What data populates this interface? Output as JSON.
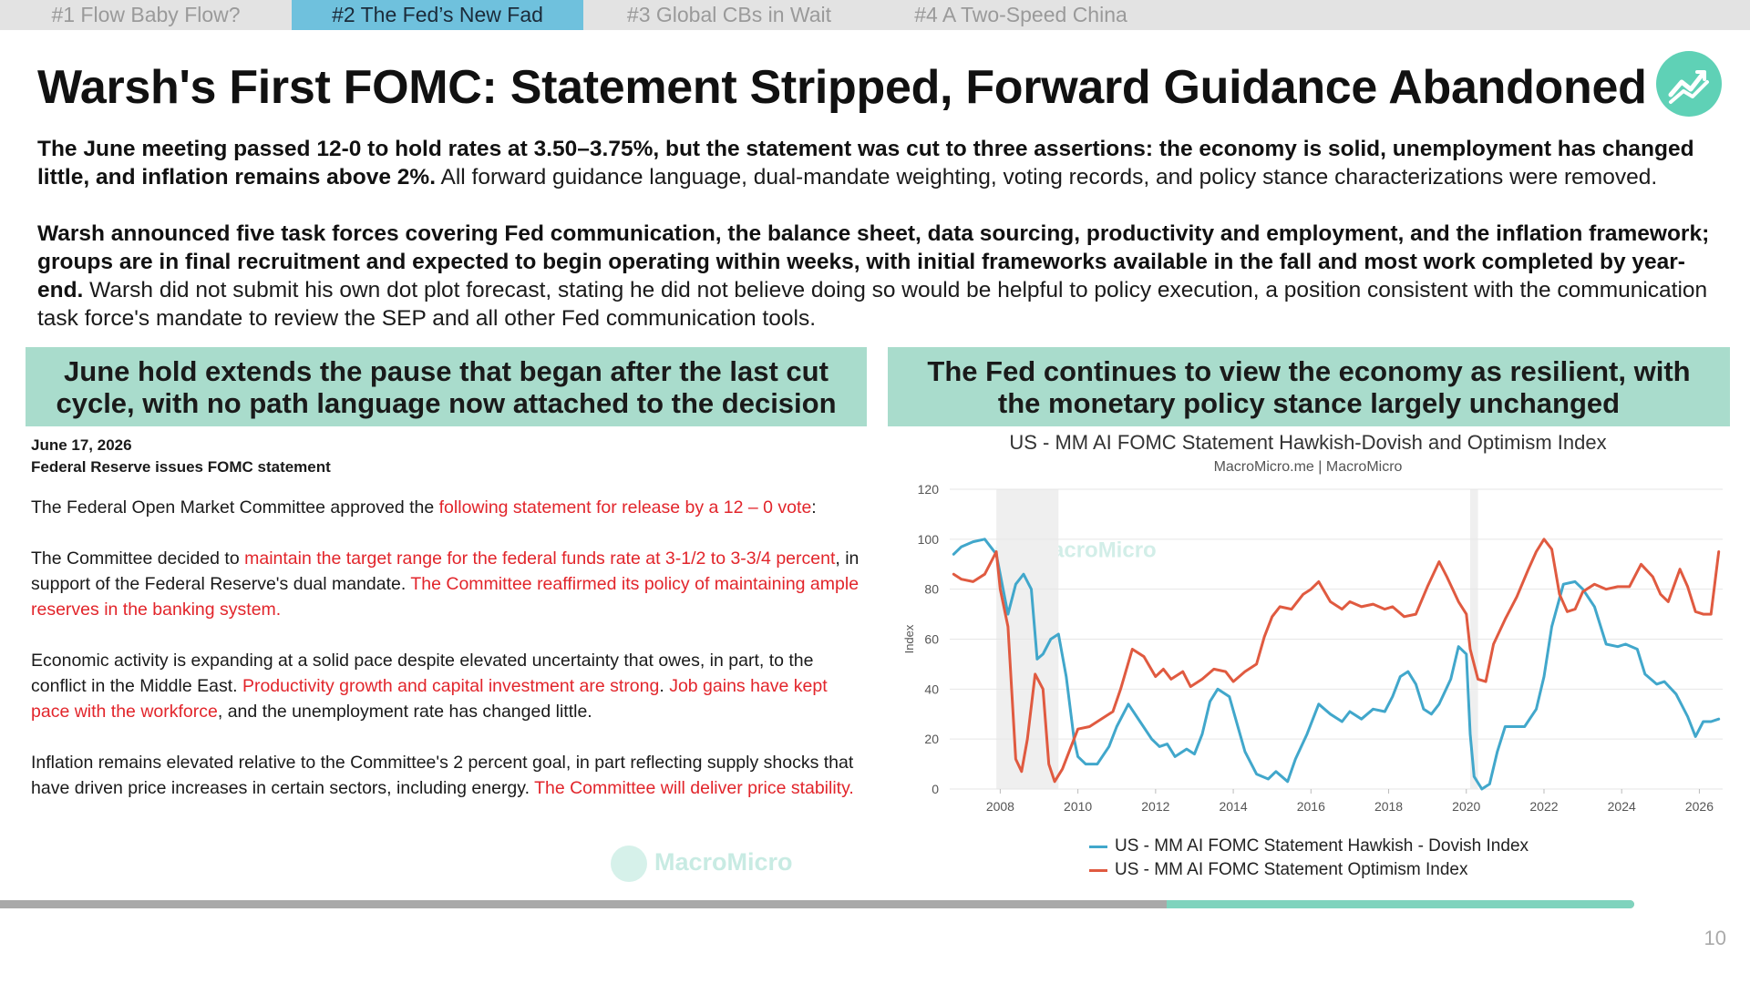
{
  "tabs": [
    {
      "label": "#1 Flow Baby Flow?",
      "active": false
    },
    {
      "label": "#2 The Fed’s New Fad",
      "active": true
    },
    {
      "label": "#3 Global CBs in Wait",
      "active": false
    },
    {
      "label": "#4 A Two-Speed China",
      "active": false
    }
  ],
  "title": "Warsh's First FOMC: Statement Stripped, Forward Guidance Abandoned",
  "logo_icon": "chart-line-up-icon",
  "intro": {
    "p1_bold": "The June meeting passed 12-0 to hold rates at 3.50–3.75%, but the statement was cut to three assertions: the economy is solid, unemployment has changed little, and inflation remains above 2%.",
    "p1_rest": " All forward guidance language, dual-mandate weighting, voting records, and policy stance characterizations were removed.",
    "p2_bold": "Warsh announced five task forces covering Fed communication, the balance sheet, data sourcing, productivity and employment, and the inflation framework; groups are in final recruitment and expected to begin operating within weeks, with initial frameworks available in the fall and most work completed by year-end.",
    "p2_rest": " Warsh did not submit his own dot plot forecast, stating he did not believe doing so would be helpful to policy execution, a position consistent with the communication task force's mandate to review the SEP and all other Fed communication tools."
  },
  "left_panel": {
    "heading": "June hold extends the pause that began after the last cut cycle, with no path language now attached to the decision",
    "date": "June 17, 2026",
    "subtitle": "Federal Reserve issues FOMC statement",
    "p1": {
      "a": "The Federal Open Market Committee approved the ",
      "r1": "following statement for release by a 12 – 0 vote",
      "b": ":"
    },
    "p2": {
      "a": "The Committee decided to ",
      "r1": "maintain the target range for the federal funds rate at 3-1/2 to 3-3/4 percent",
      "b": ", in support of the Federal Reserve's dual mandate. ",
      "r2": "The Committee reaffirmed its policy of maintaining ample reserves in the banking system."
    },
    "p3": {
      "a": "Economic activity is expanding at a solid pace despite elevated uncertainty that owes, in part, to the conflict in the Middle East. ",
      "r1": "Productivity growth and capital investment are strong",
      "b": ". ",
      "r2": "Job gains have kept pace with the workforce",
      "c": ", and the unemployment rate has changed little."
    },
    "p4": {
      "a": "Inflation remains elevated relative to the Committee's 2 percent goal, in part reflecting supply shocks that have driven price increases in certain sectors, including energy. ",
      "r1": "The Committee will deliver price stability."
    }
  },
  "right_panel": {
    "heading": "The Fed continues to view the economy as resilient, with the monetary policy stance largely unchanged"
  },
  "watermark": "MacroMicro",
  "chart_data": {
    "type": "line",
    "title": "US - MM AI FOMC Statement Hawkish-Dovish and Optimism Index",
    "subtitle": "MacroMicro.me | MacroMicro",
    "ylabel": "Index",
    "xlabel": "",
    "ylim": [
      0,
      120
    ],
    "yticks": [
      0,
      20,
      40,
      60,
      80,
      100,
      120
    ],
    "xlim": [
      2006.7,
      2026.6
    ],
    "xticks": [
      "2008",
      "2010",
      "2012",
      "2014",
      "2016",
      "2018",
      "2020",
      "2022",
      "2024",
      "2026"
    ],
    "grid": true,
    "shaded_periods": [
      [
        2007.9,
        2009.5
      ],
      [
        2020.1,
        2020.3
      ]
    ],
    "legend_position": "bottom",
    "series": [
      {
        "name": "US - MM AI FOMC Statement Hawkish - Dovish Index",
        "color": "#41a7cb",
        "x": [
          2006.8,
          2007.0,
          2007.3,
          2007.6,
          2007.9,
          2008.2,
          2008.4,
          2008.6,
          2008.8,
          2008.95,
          2009.1,
          2009.3,
          2009.5,
          2009.7,
          2009.9,
          2010.0,
          2010.2,
          2010.5,
          2010.8,
          2011.0,
          2011.3,
          2011.6,
          2011.9,
          2012.1,
          2012.3,
          2012.5,
          2012.8,
          2013.0,
          2013.2,
          2013.4,
          2013.6,
          2013.9,
          2014.1,
          2014.3,
          2014.6,
          2014.9,
          2015.1,
          2015.4,
          2015.6,
          2015.9,
          2016.2,
          2016.5,
          2016.8,
          2017.0,
          2017.3,
          2017.6,
          2017.9,
          2018.1,
          2018.3,
          2018.5,
          2018.7,
          2018.9,
          2019.1,
          2019.3,
          2019.6,
          2019.8,
          2020.0,
          2020.1,
          2020.2,
          2020.4,
          2020.6,
          2020.8,
          2021.0,
          2021.2,
          2021.5,
          2021.8,
          2022.0,
          2022.2,
          2022.5,
          2022.8,
          2023.0,
          2023.3,
          2023.6,
          2023.9,
          2024.1,
          2024.4,
          2024.6,
          2024.9,
          2025.1,
          2025.4,
          2025.7,
          2025.9,
          2026.1,
          2026.3,
          2026.5
        ],
        "y": [
          94,
          97,
          99,
          100,
          94,
          70,
          82,
          86,
          80,
          52,
          54,
          60,
          62,
          45,
          20,
          13,
          10,
          10,
          17,
          25,
          34,
          27,
          20,
          17,
          18,
          13,
          16,
          14,
          22,
          35,
          40,
          37,
          26,
          15,
          6,
          4,
          7,
          3,
          12,
          22,
          34,
          30,
          27,
          31,
          28,
          32,
          31,
          37,
          45,
          47,
          42,
          32,
          30,
          34,
          44,
          57,
          54,
          22,
          5,
          0,
          2,
          15,
          25,
          25,
          25,
          32,
          45,
          65,
          82,
          83,
          80,
          73,
          58,
          57,
          58,
          56,
          46,
          42,
          43,
          38,
          29,
          21,
          27,
          27,
          28
        ]
      },
      {
        "name": "US - MM AI FOMC Statement Optimism Index",
        "color": "#e05a40",
        "x": [
          2006.8,
          2007.0,
          2007.3,
          2007.6,
          2007.9,
          2008.0,
          2008.2,
          2008.4,
          2008.55,
          2008.7,
          2008.9,
          2009.1,
          2009.25,
          2009.4,
          2009.6,
          2009.8,
          2010.0,
          2010.3,
          2010.6,
          2010.9,
          2011.1,
          2011.4,
          2011.7,
          2012.0,
          2012.2,
          2012.4,
          2012.7,
          2012.9,
          2013.2,
          2013.5,
          2013.8,
          2014.0,
          2014.3,
          2014.6,
          2014.8,
          2015.0,
          2015.2,
          2015.5,
          2015.8,
          2016.0,
          2016.2,
          2016.5,
          2016.8,
          2017.0,
          2017.3,
          2017.6,
          2017.9,
          2018.1,
          2018.4,
          2018.7,
          2019.0,
          2019.3,
          2019.5,
          2019.8,
          2020.0,
          2020.1,
          2020.3,
          2020.5,
          2020.7,
          2021.0,
          2021.3,
          2021.6,
          2021.8,
          2022.0,
          2022.2,
          2022.4,
          2022.6,
          2022.8,
          2023.0,
          2023.3,
          2023.6,
          2023.9,
          2024.2,
          2024.5,
          2024.8,
          2025.0,
          2025.2,
          2025.5,
          2025.7,
          2025.9,
          2026.1,
          2026.3,
          2026.5
        ],
        "y": [
          86,
          84,
          83,
          86,
          95,
          80,
          65,
          12,
          7,
          20,
          46,
          40,
          10,
          3,
          8,
          16,
          24,
          25,
          28,
          31,
          40,
          56,
          53,
          45,
          48,
          44,
          47,
          41,
          44,
          48,
          47,
          43,
          47,
          50,
          61,
          69,
          73,
          72,
          78,
          80,
          83,
          75,
          72,
          75,
          73,
          74,
          72,
          73,
          69,
          70,
          81,
          91,
          85,
          75,
          70,
          56,
          44,
          43,
          58,
          68,
          77,
          88,
          95,
          100,
          96,
          78,
          71,
          72,
          79,
          82,
          80,
          81,
          81,
          90,
          85,
          78,
          75,
          88,
          81,
          71,
          70,
          70,
          95
        ]
      }
    ]
  },
  "page_number": "10"
}
